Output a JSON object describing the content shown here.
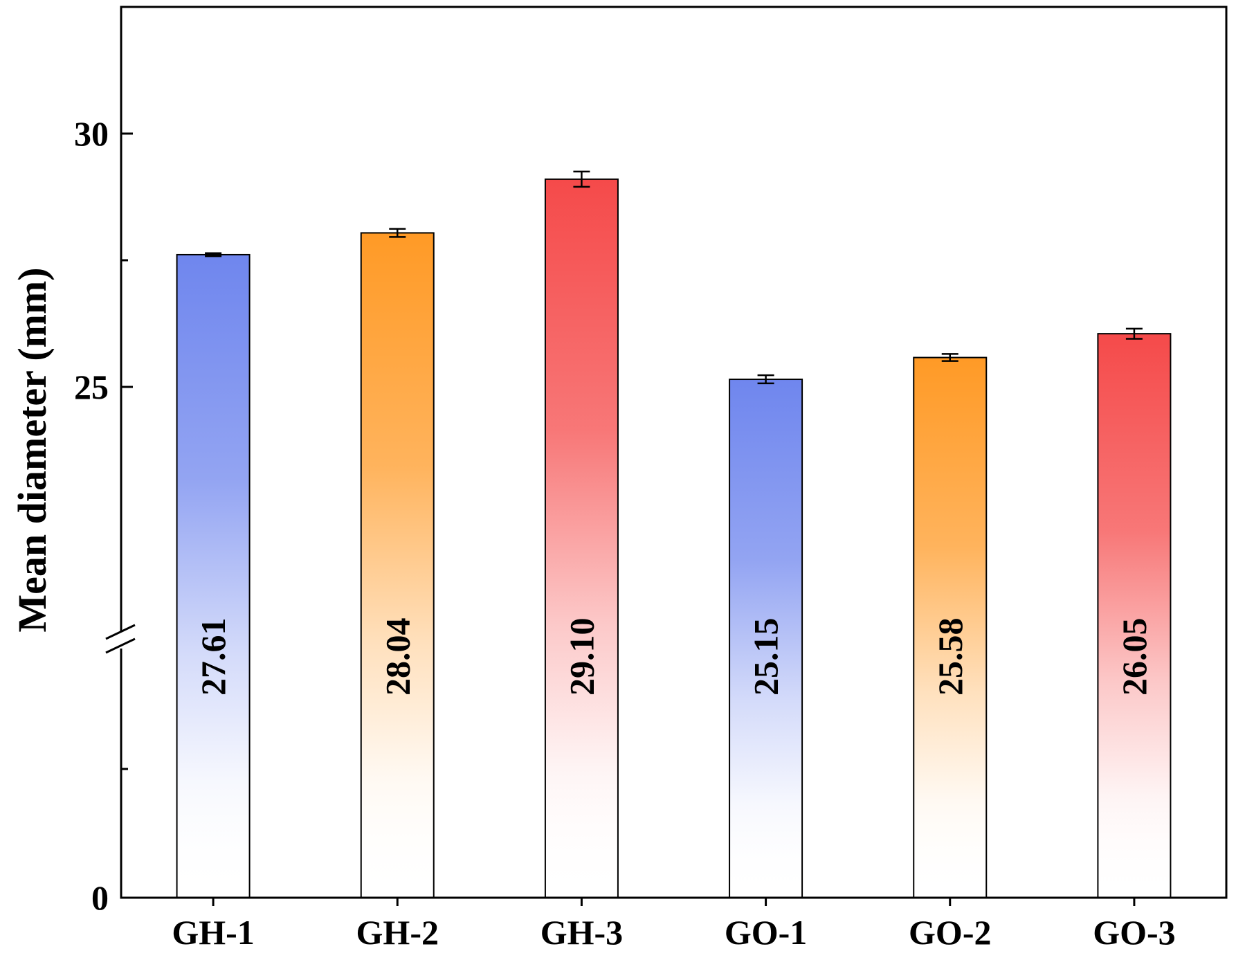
{
  "chart_data": {
    "type": "bar",
    "title": "",
    "xlabel": "",
    "ylabel": "Mean diameter (mm)",
    "categories": [
      "GH-1",
      "GH-2",
      "GH-3",
      "GO-1",
      "GO-2",
      "GO-3"
    ],
    "values": [
      27.61,
      28.04,
      29.1,
      25.15,
      25.58,
      26.05
    ],
    "value_labels": [
      "27.61",
      "28.04",
      "29.10",
      "25.15",
      "25.58",
      "26.05"
    ],
    "error": [
      0.03,
      0.08,
      0.15,
      0.08,
      0.07,
      0.1
    ],
    "y_axis_break": true,
    "ylim_lower_segment": [
      0,
      20
    ],
    "ylim_upper_segment": [
      20,
      32.5
    ],
    "yticks": [
      {
        "value": 0,
        "label": "0"
      },
      {
        "value": 25,
        "label": "25"
      },
      {
        "value": 30,
        "label": "30"
      }
    ],
    "grid": false,
    "colors": [
      "#6f86ee",
      "#ff9a26",
      "#f54a4a",
      "#6f86ee",
      "#ff9a26",
      "#f54a4a"
    ]
  }
}
